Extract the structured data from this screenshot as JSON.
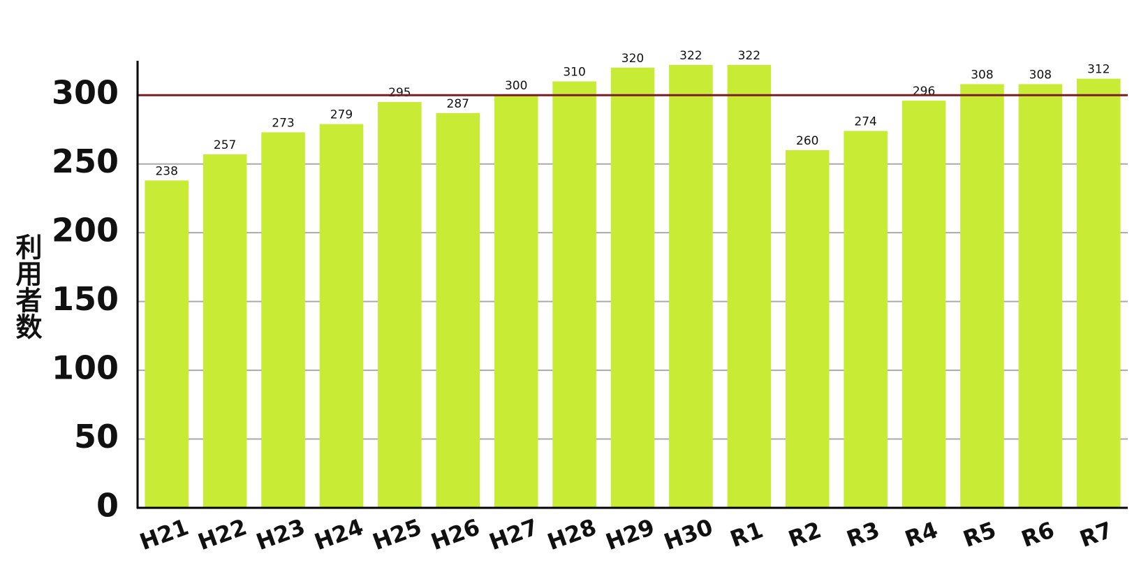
{
  "chart_data": {
    "type": "bar",
    "y_label": "利用者数",
    "categories": [
      "H21",
      "H22",
      "H23",
      "H24",
      "H25",
      "H26",
      "H27",
      "H28",
      "H29",
      "H30",
      "R1",
      "R2",
      "R3",
      "R4",
      "R5",
      "R6",
      "R7"
    ],
    "values": [
      238,
      257,
      273,
      279,
      295,
      287,
      300,
      310,
      320,
      322,
      322,
      260,
      274,
      296,
      308,
      308,
      312
    ],
    "color": "#c8eb36",
    "ylim": [
      0,
      325
    ],
    "yticks": [
      0,
      50,
      100,
      150,
      200,
      250,
      300
    ],
    "grid": true,
    "reference_line": {
      "value": 300,
      "color": "#7b1c22"
    }
  }
}
